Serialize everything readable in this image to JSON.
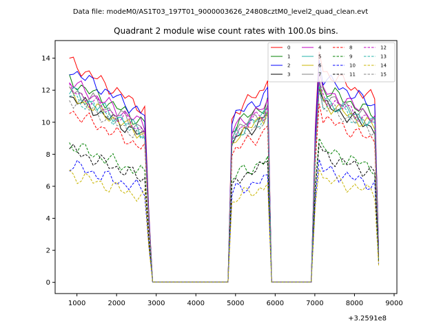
{
  "chart_data": {
    "type": "line",
    "suptitle": "Data file: modeM0/AS1T03_197T01_9000003626_24808cztM0_level2_quad_clean.evt",
    "title": "Quadrant 2 module wise count rates with 100.0s bins.",
    "xlabel": "",
    "ylabel": "",
    "x_offset_label": "+3.2591e8",
    "xlim": [
      450,
      9070
    ],
    "ylim": [
      -0.7,
      15.1
    ],
    "xticks": [
      1000,
      2000,
      3000,
      4000,
      5000,
      6000,
      7000,
      8000,
      9000
    ],
    "yticks": [
      0,
      2,
      4,
      6,
      8,
      10,
      12,
      14
    ],
    "x_segments": [
      {
        "start": 810,
        "end": 2810,
        "step": 100
      },
      {
        "start": 2910,
        "end": 4810,
        "step": 1900
      },
      {
        "start": 4910,
        "end": 5810,
        "step": 100
      },
      {
        "start": 5910,
        "end": 6910,
        "step": 1000
      },
      {
        "start": 7010,
        "end": 8610,
        "step": 100
      }
    ],
    "series": [
      {
        "name": "0",
        "color": "#ff0000",
        "style": "solid",
        "level": 12.0
      },
      {
        "name": "1",
        "color": "#008000",
        "style": "solid",
        "level": 11.0
      },
      {
        "name": "2",
        "color": "#0000ff",
        "style": "solid",
        "level": 11.6
      },
      {
        "name": "3",
        "color": "#000000",
        "style": "solid",
        "level": 10.1
      },
      {
        "name": "4",
        "color": "#c000c0",
        "style": "solid",
        "level": 10.9
      },
      {
        "name": "5",
        "color": "#20b2aa",
        "style": "solid",
        "level": 10.4
      },
      {
        "name": "6",
        "color": "#c8b400",
        "style": "solid",
        "level": 10.2
      },
      {
        "name": "7",
        "color": "#808080",
        "style": "solid",
        "level": 10.6
      },
      {
        "name": "8",
        "color": "#ff0000",
        "style": "dashed",
        "level": 9.3
      },
      {
        "name": "9",
        "color": "#008000",
        "style": "dashed",
        "level": 7.5
      },
      {
        "name": "10",
        "color": "#0000ff",
        "style": "dashed",
        "level": 6.4
      },
      {
        "name": "11",
        "color": "#000000",
        "style": "dashed",
        "level": 7.2
      },
      {
        "name": "12",
        "color": "#c000c0",
        "style": "dashed",
        "level": 10.5
      },
      {
        "name": "13",
        "color": "#20b2aa",
        "style": "dashed",
        "level": 10.2
      },
      {
        "name": "14",
        "color": "#c8b400",
        "style": "dashed",
        "level": 5.9
      },
      {
        "name": "15",
        "color": "#808080",
        "style": "dashed",
        "level": 10.0
      }
    ],
    "legend_location": "upper right",
    "grid": false
  }
}
